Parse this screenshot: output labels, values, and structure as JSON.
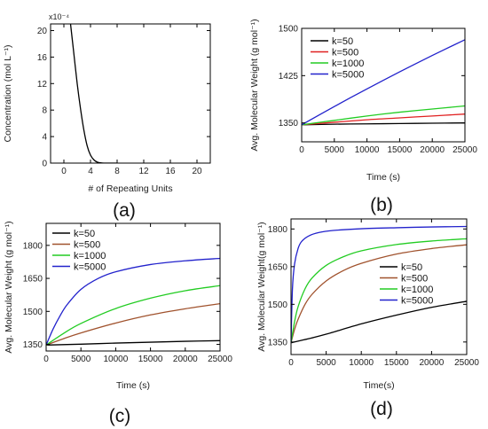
{
  "chart_data": [
    {
      "panel_label": "(a)",
      "type": "line",
      "xlabel": "# of Repeating Units",
      "ylabel": "Concentration (mol L⁻¹)",
      "exponent_label": "x10⁻⁴",
      "xlim": [
        -2,
        22
      ],
      "ylim": [
        0,
        21
      ],
      "xticks": [
        0,
        4,
        8,
        12,
        16,
        20
      ],
      "yticks": [
        0,
        4,
        8,
        12,
        16,
        20
      ],
      "series": [
        {
          "color": "#000000",
          "x": [
            1.0,
            1.5,
            2.0,
            2.5,
            3.0,
            3.5,
            4.0,
            4.5,
            5.0,
            5.5,
            6.0,
            7.0,
            8.0
          ],
          "y": [
            21.0,
            16.5,
            12.0,
            8.2,
            5.0,
            2.6,
            1.2,
            0.5,
            0.15,
            0.04,
            0.0,
            0.0,
            0.0
          ]
        }
      ]
    },
    {
      "panel_label": "(b)",
      "type": "line",
      "xlabel": "Time (s)",
      "ylabel": "Avg. Molecular Weight (g mol⁻¹)",
      "xlim": [
        0,
        25000
      ],
      "ylim": [
        1320,
        1500
      ],
      "xticks": [
        0,
        5000,
        10000,
        15000,
        20000,
        25000
      ],
      "yticks": [
        1350,
        1425,
        1500
      ],
      "legend_position": "top-left",
      "series": [
        {
          "name": "k=50",
          "color": "#000000",
          "x": [
            0,
            5000,
            10000,
            15000,
            20000,
            25000
          ],
          "y": [
            1347,
            1348,
            1348.5,
            1349,
            1349.5,
            1350
          ]
        },
        {
          "name": "k=500",
          "color": "#e02020",
          "x": [
            0,
            5000,
            10000,
            15000,
            20000,
            25000
          ],
          "y": [
            1347,
            1351,
            1355,
            1358,
            1361,
            1364
          ]
        },
        {
          "name": "k=1000",
          "color": "#22cc22",
          "x": [
            0,
            5000,
            10000,
            15000,
            20000,
            25000
          ],
          "y": [
            1347,
            1354,
            1361,
            1367,
            1372,
            1377
          ]
        },
        {
          "name": "k=5000",
          "color": "#2222cc",
          "x": [
            0,
            5000,
            10000,
            15000,
            20000,
            25000
          ],
          "y": [
            1347,
            1376,
            1404,
            1431,
            1457,
            1482
          ]
        }
      ]
    },
    {
      "panel_label": "(c)",
      "type": "line",
      "xlabel": "Time (s)",
      "ylabel": "Avg. Molecular Weight (g mol⁻¹)",
      "xlim": [
        0,
        25000
      ],
      "ylim": [
        1320,
        1900
      ],
      "xticks": [
        0,
        5000,
        10000,
        15000,
        20000,
        25000
      ],
      "yticks": [
        1350,
        1500,
        1650,
        1800
      ],
      "legend_position": "top-left",
      "series": [
        {
          "name": "k=50",
          "color": "#000000",
          "x": [
            0,
            5000,
            10000,
            15000,
            20000,
            25000
          ],
          "y": [
            1347,
            1351,
            1356,
            1360,
            1364,
            1367
          ]
        },
        {
          "name": "k=500",
          "color": "#a0522d",
          "x": [
            0,
            2500,
            5000,
            10000,
            15000,
            20000,
            25000
          ],
          "y": [
            1347,
            1376,
            1402,
            1447,
            1484,
            1512,
            1535
          ]
        },
        {
          "name": "k=1000",
          "color": "#22cc22",
          "x": [
            0,
            2500,
            5000,
            10000,
            15000,
            20000,
            25000
          ],
          "y": [
            1347,
            1400,
            1445,
            1513,
            1560,
            1594,
            1617
          ]
        },
        {
          "name": "k=5000",
          "color": "#2222cc",
          "x": [
            0,
            1000,
            2000,
            3000,
            5000,
            7500,
            10000,
            15000,
            20000,
            25000
          ],
          "y": [
            1347,
            1420,
            1480,
            1530,
            1600,
            1650,
            1680,
            1713,
            1730,
            1741
          ]
        }
      ]
    },
    {
      "panel_label": "(d)",
      "type": "line",
      "xlabel": "Time(s)",
      "ylabel": "Avg. Molecular Weight(g mol⁻¹)",
      "xlim": [
        0,
        25000
      ],
      "ylim": [
        1300,
        1840
      ],
      "xticks": [
        0,
        5000,
        10000,
        15000,
        20000,
        25000
      ],
      "yticks": [
        1350,
        1500,
        1650,
        1800
      ],
      "legend_position": "center-right",
      "series": [
        {
          "name": "k=50",
          "color": "#000000",
          "x": [
            0,
            2500,
            5000,
            10000,
            15000,
            20000,
            25000
          ],
          "y": [
            1347,
            1363,
            1381,
            1422,
            1457,
            1488,
            1512
          ]
        },
        {
          "name": "k=500",
          "color": "#a0522d",
          "x": [
            0,
            500,
            1000,
            2000,
            3000,
            5000,
            7500,
            10000,
            15000,
            20000,
            25000
          ],
          "y": [
            1347,
            1400,
            1440,
            1500,
            1540,
            1593,
            1635,
            1663,
            1700,
            1722,
            1737
          ]
        },
        {
          "name": "k=1000",
          "color": "#22cc22",
          "x": [
            0,
            500,
            1000,
            2000,
            3000,
            5000,
            7500,
            10000,
            15000,
            20000,
            25000
          ],
          "y": [
            1347,
            1430,
            1490,
            1562,
            1605,
            1655,
            1690,
            1713,
            1738,
            1752,
            1761
          ]
        },
        {
          "name": "k=5000",
          "color": "#2222cc",
          "x": [
            0,
            200,
            500,
            1000,
            1500,
            2500,
            4000,
            6000,
            10000,
            15000,
            20000,
            25000
          ],
          "y": [
            1347,
            1560,
            1660,
            1722,
            1750,
            1772,
            1786,
            1794,
            1801,
            1805,
            1808,
            1810
          ]
        }
      ]
    }
  ]
}
